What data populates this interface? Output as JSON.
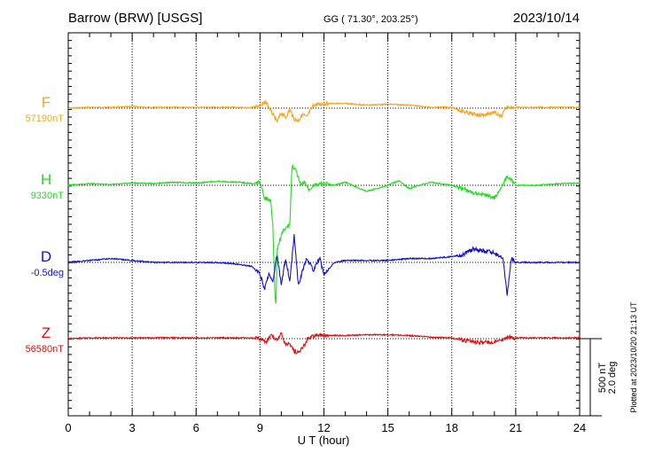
{
  "header": {
    "station": "Barrow (BRW)  [USGS]",
    "coords": "GG ( 71.30°, 203.25°)",
    "date": "2023/10/14"
  },
  "footer": {
    "plotted": "Plotted at 2023/10/20 21:13 UT"
  },
  "scale_bar": {
    "label_line1": "500 nT",
    "label_line2": "2.0 deg"
  },
  "chart_data": {
    "type": "line",
    "xlabel": "U T (hour)",
    "xlim": [
      0,
      24
    ],
    "x_ticks": [
      "0",
      "3",
      "6",
      "9",
      "12",
      "15",
      "18",
      "21",
      "24"
    ],
    "grid": true,
    "series": [
      {
        "name": "F",
        "baseline_label": "57190nT",
        "color": "#f5a623",
        "unit": "nT",
        "t": [
          0,
          1,
          2,
          3,
          4,
          5,
          6,
          7,
          8,
          8.5,
          9,
          9.3,
          9.6,
          9.8,
          10.0,
          10.2,
          10.4,
          10.6,
          10.8,
          11.0,
          11.2,
          11.5,
          12,
          13,
          14,
          15,
          16,
          17,
          18,
          18.5,
          19,
          19.5,
          20,
          20.3,
          20.6,
          21,
          22,
          23,
          24
        ],
        "values": [
          0,
          5,
          5,
          10,
          5,
          5,
          5,
          5,
          5,
          0,
          20,
          35,
          -40,
          -90,
          -30,
          -60,
          -10,
          -70,
          -80,
          -40,
          -60,
          20,
          30,
          30,
          20,
          25,
          20,
          5,
          5,
          -20,
          -40,
          -45,
          -25,
          -60,
          10,
          5,
          5,
          5,
          5
        ]
      },
      {
        "name": "H",
        "baseline_label": "9330nT",
        "color": "#22dd22",
        "unit": "nT",
        "t": [
          0,
          1,
          2,
          3,
          4,
          5,
          6,
          7,
          8,
          8.7,
          9.0,
          9.2,
          9.5,
          9.6,
          9.7,
          9.75,
          9.8,
          9.9,
          10.0,
          10.2,
          10.4,
          10.5,
          10.7,
          10.9,
          11.1,
          11.3,
          11.5,
          12,
          12.5,
          13,
          14,
          15,
          15.5,
          16,
          17,
          18,
          18.5,
          19,
          19.5,
          20,
          20.3,
          20.6,
          21,
          22,
          23,
          24
        ],
        "values": [
          0,
          10,
          5,
          15,
          10,
          20,
          15,
          25,
          20,
          10,
          20,
          -80,
          -100,
          -250,
          -700,
          -780,
          -420,
          -380,
          -320,
          -280,
          -250,
          130,
          90,
          0,
          20,
          -30,
          0,
          10,
          0,
          20,
          -40,
          0,
          30,
          -20,
          20,
          0,
          -20,
          -50,
          -60,
          -80,
          -20,
          60,
          0,
          0,
          10,
          15
        ]
      },
      {
        "name": "D",
        "baseline_label": "-0.5deg",
        "color": "#1111cc",
        "unit": "deg",
        "t": [
          0,
          1,
          2,
          3,
          4,
          5,
          6,
          7,
          8,
          8.6,
          9.0,
          9.2,
          9.4,
          9.6,
          9.8,
          10.0,
          10.2,
          10.4,
          10.6,
          10.8,
          11.0,
          11.2,
          11.5,
          11.8,
          12,
          12.5,
          13,
          14,
          15,
          16,
          17,
          18,
          18.5,
          19,
          19.5,
          20,
          20.4,
          20.6,
          20.8,
          21,
          22,
          23,
          24
        ],
        "values": [
          0,
          0.05,
          0.1,
          0.05,
          0,
          0,
          0,
          0,
          -0.05,
          -0.1,
          -0.3,
          -0.7,
          -0.3,
          -0.5,
          0.2,
          -0.6,
          0.1,
          -0.5,
          0.7,
          -0.6,
          -0.2,
          0.1,
          -0.2,
          0.1,
          -0.3,
          0,
          0.05,
          0.05,
          0.05,
          0.1,
          0.1,
          0.15,
          0.2,
          0.35,
          0.3,
          0.25,
          0.1,
          -0.85,
          0.1,
          0,
          0,
          0,
          0
        ]
      },
      {
        "name": "Z",
        "baseline_label": "56580nT",
        "color": "#dd1111",
        "unit": "nT",
        "t": [
          0,
          1,
          2,
          3,
          4,
          5,
          6,
          7,
          8,
          8.5,
          9.0,
          9.3,
          9.5,
          9.8,
          10.0,
          10.2,
          10.4,
          10.6,
          10.8,
          11.0,
          11.3,
          11.6,
          12,
          13,
          14,
          15,
          16,
          17,
          18,
          18.5,
          19,
          19.5,
          20,
          20.4,
          20.6,
          21,
          22,
          23,
          24
        ],
        "values": [
          0,
          5,
          5,
          5,
          5,
          5,
          5,
          5,
          5,
          5,
          0,
          -20,
          20,
          -10,
          30,
          -40,
          -30,
          -80,
          -90,
          -60,
          10,
          20,
          20,
          20,
          25,
          25,
          20,
          10,
          5,
          -10,
          -20,
          -25,
          -20,
          -10,
          10,
          5,
          5,
          5,
          5
        ]
      }
    ]
  }
}
